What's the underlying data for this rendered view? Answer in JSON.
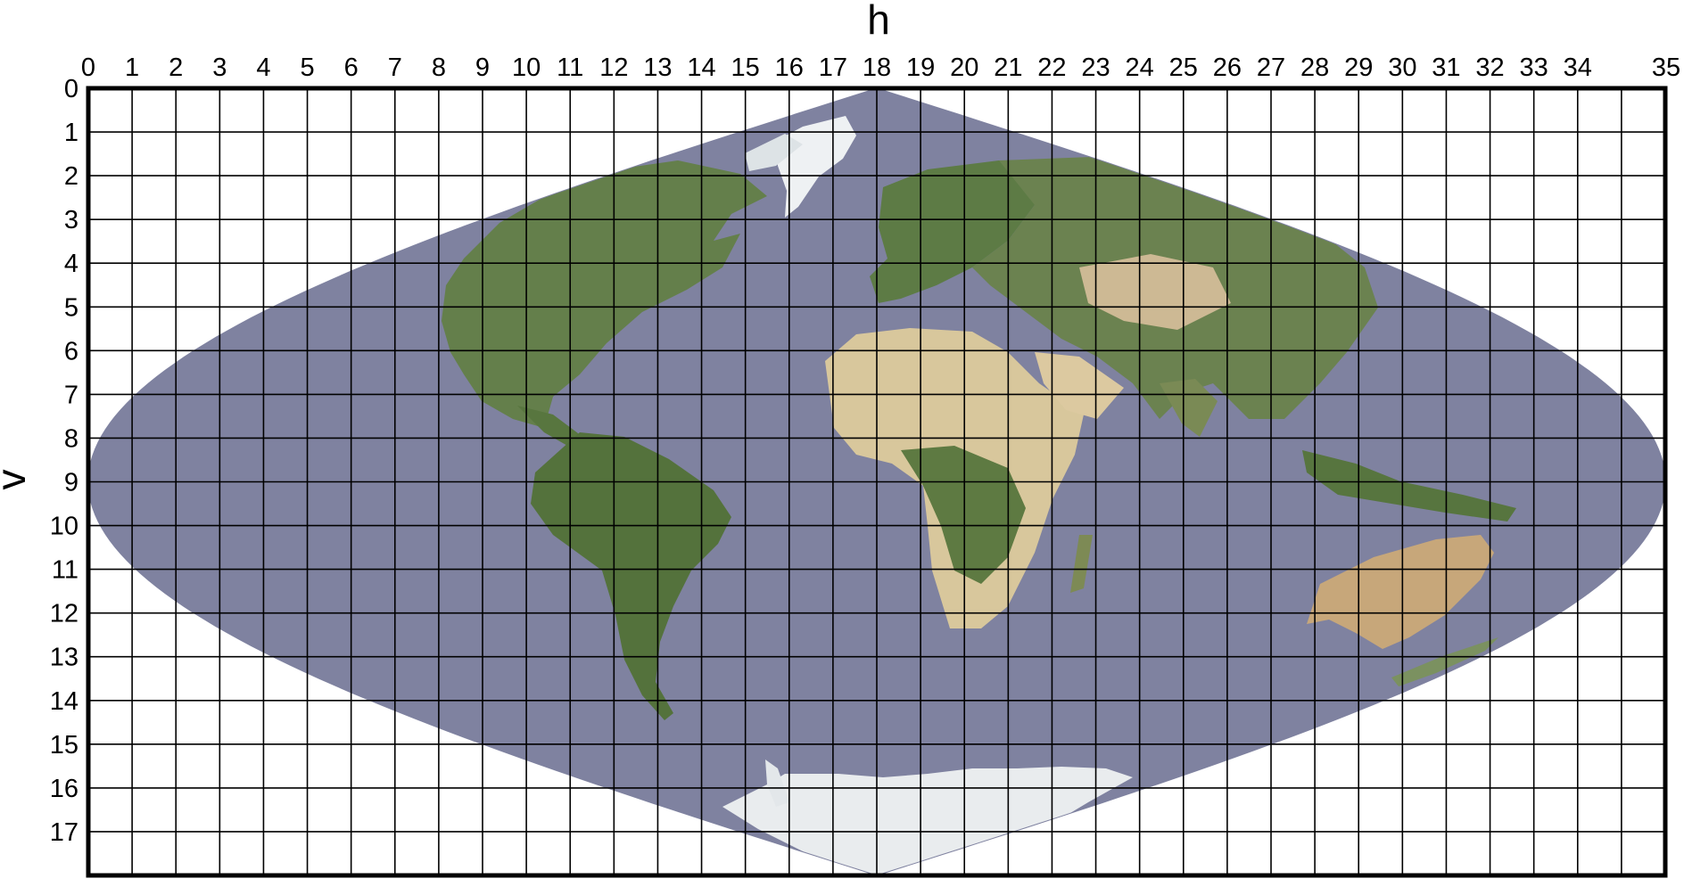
{
  "map": {
    "title": "",
    "projection": "sinusoidal",
    "x_axis": {
      "label": "h",
      "ticks": [
        "0",
        "1",
        "2",
        "3",
        "4",
        "5",
        "6",
        "7",
        "8",
        "9",
        "10",
        "11",
        "12",
        "13",
        "14",
        "15",
        "16",
        "17",
        "18",
        "19",
        "20",
        "21",
        "22",
        "23",
        "24",
        "25",
        "26",
        "27",
        "28",
        "29",
        "30",
        "31",
        "32",
        "33",
        "34",
        "35"
      ]
    },
    "y_axis": {
      "label": "v",
      "ticks": [
        "0",
        "1",
        "2",
        "3",
        "4",
        "5",
        "6",
        "7",
        "8",
        "9",
        "10",
        "11",
        "12",
        "13",
        "14",
        "15",
        "16",
        "17"
      ]
    },
    "grid": {
      "columns": 36,
      "rows": 18,
      "visible": true
    },
    "colors": {
      "ocean": "#7f82a0",
      "land": "#5f7d4a",
      "desert": "#d4c39a",
      "ice": "#f2f4f6",
      "grid_line": "#000000",
      "background": "#ffffff"
    }
  }
}
